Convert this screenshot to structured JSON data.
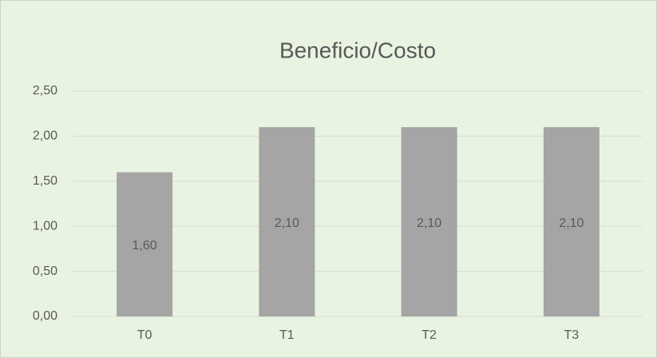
{
  "chart_data": {
    "type": "bar",
    "title": "Beneficio/Costo",
    "categories": [
      "T0",
      "T1",
      "T2",
      "T3"
    ],
    "values": [
      1.6,
      2.1,
      2.1,
      2.1
    ],
    "value_labels": [
      "1,60",
      "2,10",
      "2,10",
      "2,10"
    ],
    "color": "#a5a5a5",
    "ylim": [
      0,
      2.5
    ],
    "yticks": [
      {
        "value": 0,
        "label": "0,00"
      },
      {
        "value": 0.5,
        "label": "0,50"
      },
      {
        "value": 1,
        "label": "1,00"
      },
      {
        "value": 1.5,
        "label": "1,50"
      },
      {
        "value": 2,
        "label": "2,00"
      },
      {
        "value": 2.5,
        "label": "2,50"
      }
    ],
    "grid": true
  }
}
